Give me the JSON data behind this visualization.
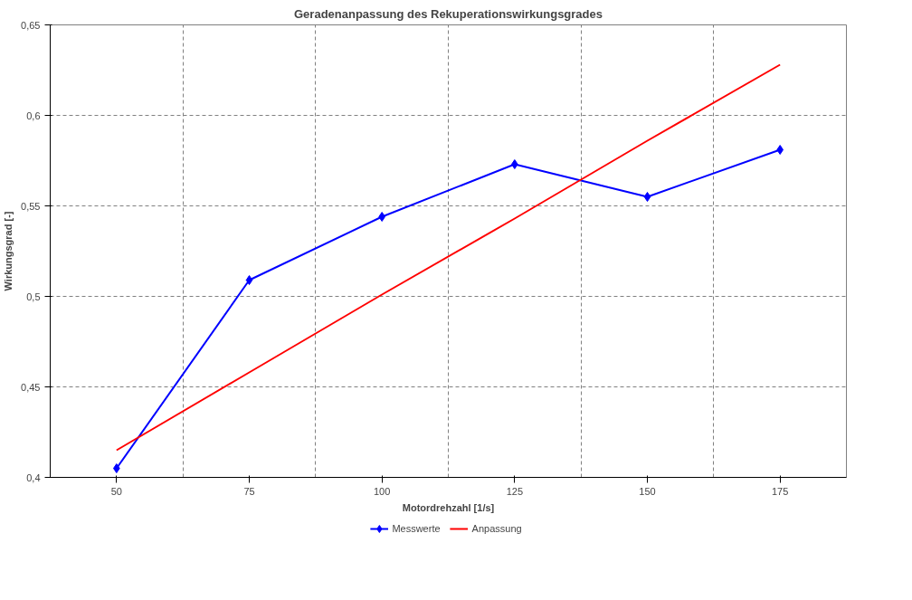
{
  "chart_data": {
    "type": "line",
    "title": "Geradenanpassung des Rekuperationswirkungsgrades",
    "xlabel": "Motordrehzahl [1/s]",
    "ylabel": "Wirkungsgrad [-]",
    "categories": [
      "50",
      "75",
      "100",
      "125",
      "150",
      "175"
    ],
    "series": [
      {
        "name": "Messwerte",
        "color": "#0000ff",
        "marker": "diamond",
        "values": [
          0.405,
          0.509,
          0.544,
          0.573,
          0.555,
          0.581
        ]
      },
      {
        "name": "Anpassung",
        "color": "#ff0000",
        "marker": "none",
        "values": [
          0.415,
          0.458,
          0.501,
          0.543,
          0.586,
          0.628
        ]
      }
    ],
    "ylim": [
      0.4,
      0.65
    ],
    "yticks": [
      {
        "value": 0.4,
        "label": "0,4"
      },
      {
        "value": 0.45,
        "label": "0,45"
      },
      {
        "value": 0.5,
        "label": "0,5"
      },
      {
        "value": 0.55,
        "label": "0,55"
      },
      {
        "value": 0.6,
        "label": "0,6"
      },
      {
        "value": 0.65,
        "label": "0,65"
      }
    ],
    "grid": true,
    "legend": "bottom",
    "line_style": "solid"
  }
}
